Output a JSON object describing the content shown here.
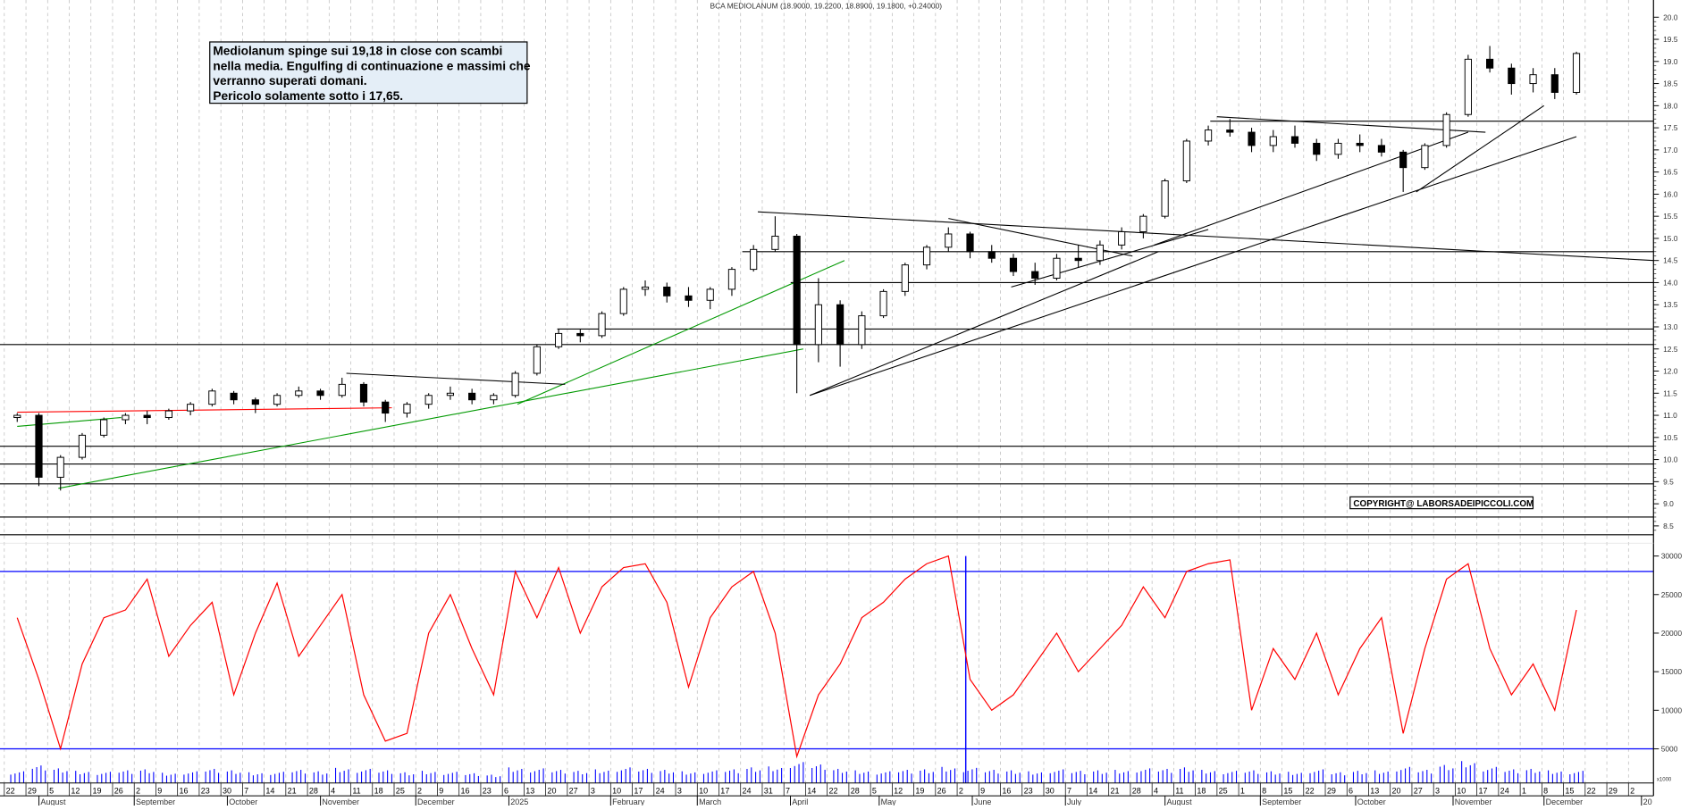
{
  "title": "BCA MEDIOLANUM (18.9000, 19.2200, 18.8900, 19.1800, +0.24000)",
  "annotation": {
    "lines": [
      "Mediolanum  spinge sui 19,18 in close con scambi",
      "nella media. Engulfing di continuazione e massimi che",
      "verranno superati domani.",
      "Pericolo solamente sotto i 17,65."
    ],
    "background": "#e4eef7"
  },
  "copyright": "COPYRIGHT@ LABORSADEIPICCOLI.COM",
  "volume_unit_label": "x1000",
  "colors": {
    "candle": "#000000",
    "oscillator": "#ff0000",
    "volume": "#0000ff",
    "level_lines": "#0000ff",
    "support_green": "#009900",
    "resistance_red": "#ff0000"
  },
  "chart_data": [
    {
      "type": "candlestick",
      "granularity_note_visible": false,
      "y_axis": {
        "min": 8.5,
        "max": 20.0,
        "ticks": [
          "20.0",
          "19.5",
          "19.0",
          "18.5",
          "18.0",
          "17.5",
          "17.0",
          "16.5",
          "16.0",
          "15.5",
          "15.0",
          "14.5",
          "14.0",
          "13.5",
          "13.0",
          "12.5",
          "12.0",
          "11.5",
          "11.0",
          "10.5",
          "10.0",
          "9.5",
          "9.0",
          "8.5"
        ]
      },
      "grid": "vertical dashed",
      "weeks_ohlc": [
        [
          10.95,
          11.05,
          10.85,
          11.0
        ],
        [
          11.0,
          11.05,
          9.4,
          9.6
        ],
        [
          9.6,
          10.1,
          9.3,
          10.05
        ],
        [
          10.05,
          10.6,
          10.0,
          10.55
        ],
        [
          10.55,
          10.95,
          10.5,
          10.9
        ],
        [
          10.9,
          11.05,
          10.8,
          11.0
        ],
        [
          11.0,
          11.1,
          10.8,
          10.95
        ],
        [
          10.95,
          11.15,
          10.9,
          11.1
        ],
        [
          11.1,
          11.3,
          11.0,
          11.25
        ],
        [
          11.25,
          11.6,
          11.2,
          11.55
        ],
        [
          11.5,
          11.55,
          11.25,
          11.35
        ],
        [
          11.35,
          11.4,
          11.05,
          11.25
        ],
        [
          11.25,
          11.5,
          11.2,
          11.45
        ],
        [
          11.45,
          11.65,
          11.4,
          11.55
        ],
        [
          11.55,
          11.6,
          11.35,
          11.45
        ],
        [
          11.45,
          11.85,
          11.4,
          11.7
        ],
        [
          11.7,
          11.75,
          11.2,
          11.3
        ],
        [
          11.3,
          11.35,
          10.85,
          11.05
        ],
        [
          11.05,
          11.3,
          10.95,
          11.25
        ],
        [
          11.25,
          11.5,
          11.15,
          11.45
        ],
        [
          11.45,
          11.65,
          11.35,
          11.5
        ],
        [
          11.5,
          11.6,
          11.25,
          11.35
        ],
        [
          11.35,
          11.5,
          11.25,
          11.45
        ],
        [
          11.45,
          12.0,
          11.4,
          11.95
        ],
        [
          11.95,
          12.6,
          11.9,
          12.55
        ],
        [
          12.55,
          12.95,
          12.5,
          12.85
        ],
        [
          12.85,
          12.95,
          12.65,
          12.8
        ],
        [
          12.8,
          13.35,
          12.75,
          13.3
        ],
        [
          13.3,
          13.9,
          13.25,
          13.85
        ],
        [
          13.85,
          14.05,
          13.7,
          13.9
        ],
        [
          13.9,
          14.0,
          13.55,
          13.7
        ],
        [
          13.7,
          13.9,
          13.45,
          13.6
        ],
        [
          13.6,
          13.9,
          13.4,
          13.85
        ],
        [
          13.85,
          14.35,
          13.7,
          14.3
        ],
        [
          14.3,
          14.85,
          14.25,
          14.75
        ],
        [
          14.75,
          15.5,
          14.7,
          15.05
        ],
        [
          15.05,
          15.1,
          11.5,
          12.6
        ],
        [
          12.6,
          14.1,
          12.2,
          13.5
        ],
        [
          13.5,
          13.6,
          12.1,
          12.6
        ],
        [
          12.6,
          13.35,
          12.5,
          13.25
        ],
        [
          13.25,
          13.85,
          13.2,
          13.8
        ],
        [
          13.8,
          14.45,
          13.7,
          14.4
        ],
        [
          14.4,
          14.85,
          14.3,
          14.8
        ],
        [
          14.8,
          15.25,
          14.7,
          15.1
        ],
        [
          15.1,
          15.15,
          14.55,
          14.7
        ],
        [
          14.7,
          14.85,
          14.45,
          14.55
        ],
        [
          14.55,
          14.65,
          14.15,
          14.25
        ],
        [
          14.25,
          14.45,
          13.95,
          14.1
        ],
        [
          14.1,
          14.65,
          14.05,
          14.55
        ],
        [
          14.55,
          14.85,
          14.35,
          14.5
        ],
        [
          14.5,
          14.95,
          14.4,
          14.85
        ],
        [
          14.85,
          15.25,
          14.75,
          15.15
        ],
        [
          15.15,
          15.55,
          15.0,
          15.5
        ],
        [
          15.5,
          16.35,
          15.45,
          16.3
        ],
        [
          16.3,
          17.25,
          16.25,
          17.2
        ],
        [
          17.2,
          17.55,
          17.1,
          17.45
        ],
        [
          17.45,
          17.7,
          17.3,
          17.4
        ],
        [
          17.4,
          17.5,
          16.95,
          17.1
        ],
        [
          17.1,
          17.45,
          16.95,
          17.3
        ],
        [
          17.3,
          17.55,
          17.05,
          17.15
        ],
        [
          17.15,
          17.25,
          16.75,
          16.9
        ],
        [
          16.9,
          17.25,
          16.8,
          17.15
        ],
        [
          17.15,
          17.35,
          16.95,
          17.1
        ],
        [
          17.1,
          17.25,
          16.85,
          16.95
        ],
        [
          16.95,
          17.0,
          16.05,
          16.6
        ],
        [
          16.6,
          17.15,
          16.55,
          17.1
        ],
        [
          17.1,
          17.85,
          17.05,
          17.8
        ],
        [
          17.8,
          19.15,
          17.75,
          19.05
        ],
        [
          19.05,
          19.35,
          18.75,
          18.85
        ],
        [
          18.85,
          18.95,
          18.25,
          18.5
        ],
        [
          18.5,
          18.85,
          18.3,
          18.7
        ],
        [
          18.7,
          18.85,
          18.15,
          18.3
        ],
        [
          18.3,
          19.22,
          18.25,
          19.18
        ]
      ],
      "horizontal_levels": [
        17.65,
        14.7,
        14.0,
        12.95,
        12.6,
        10.3,
        9.9,
        9.45,
        8.7,
        8.3
      ],
      "trendlines": [
        {
          "color": "red",
          "from": [
            0,
            11.07
          ],
          "to": [
            17.3,
            11.17
          ]
        },
        {
          "color": "green",
          "from": [
            0,
            10.75
          ],
          "to": [
            4.8,
            10.95
          ]
        },
        {
          "color": "green",
          "from": [
            1.9,
            9.35
          ],
          "to": [
            36.3,
            12.5
          ]
        },
        {
          "color": "green",
          "from": [
            23.1,
            11.25
          ],
          "to": [
            38.2,
            14.5
          ]
        },
        {
          "color": "black",
          "from": [
            15.2,
            11.95
          ],
          "to": [
            25.3,
            11.7
          ]
        },
        {
          "color": "black",
          "from": [
            34.2,
            15.6
          ],
          "to": [
            75.9,
            14.5
          ]
        },
        {
          "color": "black",
          "from": [
            36.6,
            11.45
          ],
          "to": [
            52.7,
            14.7
          ]
        },
        {
          "color": "black",
          "from": [
            36.6,
            11.45
          ],
          "to": [
            72.0,
            17.3
          ]
        },
        {
          "color": "black",
          "from": [
            45.9,
            13.9
          ],
          "to": [
            55.0,
            15.2
          ]
        },
        {
          "color": "black",
          "from": [
            43.0,
            15.45
          ],
          "to": [
            51.5,
            14.6
          ]
        },
        {
          "color": "black",
          "from": [
            55.4,
            17.75
          ],
          "to": [
            67.8,
            17.4
          ]
        },
        {
          "color": "black",
          "from": [
            52.5,
            14.85
          ],
          "to": [
            67.0,
            17.4
          ]
        },
        {
          "color": "black",
          "from": [
            64.6,
            16.05
          ],
          "to": [
            70.5,
            18.0
          ]
        }
      ]
    },
    {
      "type": "line",
      "series_color": "red",
      "y_axis": {
        "min": 0,
        "max": 30000,
        "ticks": [
          "30000",
          "25000",
          "20000",
          "15000",
          "10000",
          "5000"
        ]
      },
      "reference_lines": [
        28000,
        5000
      ],
      "values": [
        22000,
        14000,
        5000,
        16000,
        22000,
        23000,
        27000,
        17000,
        21000,
        24000,
        12000,
        20000,
        26500,
        17000,
        21000,
        25000,
        12000,
        6000,
        7000,
        20000,
        25000,
        18000,
        12000,
        28000,
        22000,
        28500,
        20000,
        26000,
        28500,
        29000,
        24000,
        13000,
        22000,
        26000,
        28000,
        20000,
        4000,
        12000,
        16000,
        22000,
        24000,
        27000,
        29000,
        30000,
        14000,
        10000,
        12000,
        16000,
        20000,
        15000,
        18000,
        21000,
        26000,
        22000,
        28000,
        29000,
        29500,
        10000,
        18000,
        14000,
        20000,
        12000,
        18000,
        22000,
        7000,
        18000,
        27000,
        29000,
        18000,
        12000,
        16000,
        10000,
        23000
      ],
      "marker_week_index": 44
    },
    {
      "type": "bar",
      "series_color": "blue",
      "unit": "x1000",
      "values": [
        2.4,
        3.6,
        3.0,
        2.5,
        2.3,
        2.6,
        2.8,
        2.1,
        2.4,
        2.9,
        2.6,
        2.2,
        2.3,
        2.7,
        2.4,
        3.1,
        2.9,
        2.6,
        2.2,
        2.5,
        2.3,
        2.0,
        1.7,
        3.2,
        3.0,
        2.7,
        2.5,
        2.8,
        3.2,
        2.9,
        2.7,
        2.4,
        2.6,
        2.8,
        3.2,
        3.4,
        4.3,
        3.8,
        2.9,
        2.6,
        2.4,
        2.7,
        2.8,
        3.3,
        3.1,
        2.7,
        2.6,
        2.4,
        2.8,
        2.5,
        2.6,
        2.7,
        3.0,
        2.9,
        3.2,
        2.7,
        2.5,
        2.6,
        2.4,
        2.3,
        2.8,
        2.2,
        2.5,
        2.6,
        3.3,
        2.7,
        3.7,
        4.5,
        3.3,
        2.8,
        2.9,
        2.6,
        2.5
      ]
    }
  ],
  "x_axis": {
    "week_labels": [
      "22",
      "29",
      "5",
      "12",
      "19",
      "26",
      "2",
      "9",
      "16",
      "23",
      "30",
      "7",
      "14",
      "21",
      "28",
      "4",
      "11",
      "18",
      "25",
      "2",
      "9",
      "16",
      "23",
      "6",
      "13",
      "20",
      "27",
      "3",
      "10",
      "17",
      "24",
      "3",
      "10",
      "17",
      "24",
      "31",
      "7",
      "14",
      "22",
      "28",
      "5",
      "12",
      "19",
      "26",
      "2",
      "9",
      "16",
      "23",
      "30",
      "7",
      "14",
      "21",
      "28",
      "4",
      "11",
      "18",
      "25",
      "1",
      "8",
      "15",
      "22",
      "29",
      "6",
      "13",
      "20",
      "27",
      "3",
      "10",
      "17",
      "24",
      "1",
      "8",
      "15",
      "22",
      "29",
      "2"
    ],
    "months": [
      "August",
      "September",
      "October",
      "November",
      "December",
      "2025",
      "February",
      "March",
      "April",
      "May",
      "June",
      "July",
      "August",
      "September",
      "October",
      "November",
      "December",
      "20"
    ]
  }
}
